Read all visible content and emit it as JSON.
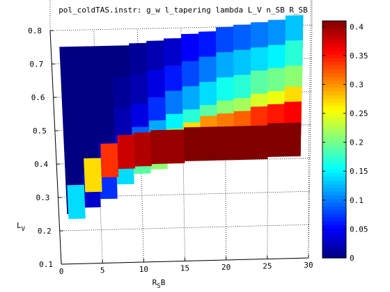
{
  "chart_data": {
    "type": "heatmap",
    "title": "pol_coldTAS.instr: g_w l_tapering lambda L_V n_SB R_SB",
    "xlabel": "R_SB",
    "ylabel": "L_V",
    "xlim": [
      0,
      30
    ],
    "ylim": [
      0.1,
      0.8
    ],
    "x_ticks": [
      0,
      5,
      10,
      15,
      20,
      25,
      30
    ],
    "y_ticks": [
      0.1,
      0.2,
      0.3,
      0.4,
      0.5,
      0.6,
      0.7,
      0.8
    ],
    "x_tick_labels": [
      "0",
      "5",
      "10",
      "15",
      "20",
      "25",
      "30"
    ],
    "y_tick_labels": [
      "0.1",
      "0.2",
      "0.3",
      "0.4",
      "0.5",
      "0.6",
      "0.7",
      "0.8"
    ],
    "x": [
      2,
      4,
      6,
      8,
      10,
      12,
      14,
      16,
      18,
      20,
      22,
      24,
      26,
      28
    ],
    "y": [
      0.2,
      0.3,
      0.4,
      0.5,
      0.6,
      0.7
    ],
    "z": [
      [
        0.14,
        0.27,
        0.34,
        0.38,
        0.39,
        0.4,
        0.4,
        0.41,
        0.41,
        0.41,
        0.41,
        0.41,
        0.42,
        0.42
      ],
      [
        0.0,
        0.03,
        0.07,
        0.14,
        0.19,
        0.21,
        0.24,
        0.27,
        0.3,
        0.31,
        0.32,
        0.34,
        0.35,
        0.36
      ],
      [
        0.0,
        0.0,
        0.02,
        0.05,
        0.09,
        0.12,
        0.15,
        0.17,
        0.19,
        0.21,
        0.22,
        0.24,
        0.25,
        0.27
      ],
      [
        0.0,
        0.0,
        0.0,
        0.02,
        0.04,
        0.07,
        0.1,
        0.12,
        0.14,
        0.16,
        0.17,
        0.19,
        0.2,
        0.21
      ],
      [
        0.0,
        0.0,
        0.0,
        0.01,
        0.02,
        0.04,
        0.06,
        0.08,
        0.1,
        0.12,
        0.13,
        0.14,
        0.15,
        0.17
      ],
      [
        0.0,
        0.0,
        0.0,
        0.0,
        0.01,
        0.02,
        0.03,
        0.05,
        0.06,
        0.08,
        0.09,
        0.1,
        0.11,
        0.13
      ]
    ],
    "colorbar": {
      "min": 0,
      "max": 0.41,
      "ticks": [
        0,
        0.05,
        0.1,
        0.15,
        0.2,
        0.25,
        0.3,
        0.35,
        0.4
      ],
      "tick_labels": [
        "0",
        "0.05",
        "0.1",
        "0.15",
        "0.2",
        "0.25",
        "0.3",
        "0.35",
        "0.4"
      ]
    },
    "colormap": "jet",
    "grid": true
  }
}
